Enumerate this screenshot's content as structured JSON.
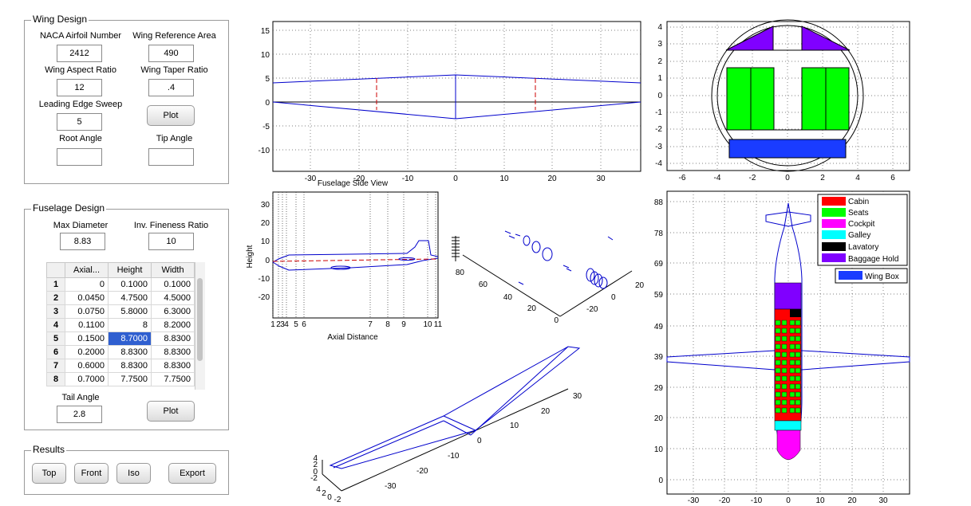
{
  "wing": {
    "title": "Wing Design",
    "naca_label": "NACA Airfoil Number",
    "naca_value": "2412",
    "area_label": "Wing Reference Area",
    "area_value": "490",
    "aspect_label": "Wing Aspect Ratio",
    "aspect_value": "12",
    "taper_label": "Wing Taper Ratio",
    "taper_value": ".4",
    "sweep_label": "Leading Edge Sweep",
    "sweep_value": "5",
    "plot_label": "Plot",
    "root_label": "Root Angle",
    "root_value": "",
    "tip_label": "Tip Angle",
    "tip_value": ""
  },
  "fuselage": {
    "title": "Fuselage Design",
    "diam_label": "Max Diameter",
    "diam_value": "8.83",
    "fineness_label": "Inv. Fineness Ratio",
    "fineness_value": "10",
    "table": {
      "headers": [
        "Axial...",
        "Height",
        "Width"
      ],
      "rows": [
        [
          "1",
          "0",
          "0.1000",
          "0.1000"
        ],
        [
          "2",
          "0.0450",
          "4.7500",
          "4.5000"
        ],
        [
          "3",
          "0.0750",
          "5.8000",
          "6.3000"
        ],
        [
          "4",
          "0.1100",
          "8",
          "8.2000"
        ],
        [
          "5",
          "0.1500",
          "8.7000",
          "8.8300"
        ],
        [
          "6",
          "0.2000",
          "8.8300",
          "8.8300"
        ],
        [
          "7",
          "0.6000",
          "8.8300",
          "8.8300"
        ],
        [
          "8",
          "0.7000",
          "7.7500",
          "7.7500"
        ]
      ],
      "selected_row": 5,
      "selected_col": 2
    },
    "tail_label": "Tail Angle",
    "tail_value": "2.8",
    "plot_label": "Plot"
  },
  "results": {
    "title": "Results",
    "top_label": "Top",
    "front_label": "Front",
    "iso_label": "Iso",
    "export_label": "Export"
  },
  "front_view": {
    "x_ticks": [
      "-30",
      "-20",
      "-10",
      "0",
      "10",
      "20",
      "30"
    ],
    "y_ticks": [
      "15",
      "10",
      "5",
      "0",
      "-5",
      "-10"
    ]
  },
  "side_view": {
    "title": "Fuselage Side View",
    "xlabel": "Axial Distance",
    "ylabel": "Height",
    "y_ticks": [
      "30",
      "20",
      "10",
      "0",
      "-10",
      "-20"
    ],
    "station_ticks": [
      "1",
      "2",
      "3",
      "4",
      "5",
      "6",
      "7",
      "8",
      "9",
      "10",
      "11"
    ]
  },
  "iso_small": {
    "left_ticks": [
      "80",
      "60",
      "40",
      "20",
      "0"
    ],
    "right_ticks": [
      "20",
      "0",
      "-20"
    ]
  },
  "cross_section": {
    "x_ticks": [
      "-6",
      "-4",
      "-2",
      "0",
      "2",
      "4",
      "6"
    ],
    "y_ticks": [
      "4",
      "3",
      "2",
      "1",
      "0",
      "-1",
      "-2",
      "-3",
      "-4"
    ]
  },
  "top_view": {
    "x_ticks": [
      "-30",
      "-20",
      "-10",
      "0",
      "10",
      "20",
      "30"
    ],
    "y_ticks": [
      "88",
      "78",
      "69",
      "59",
      "49",
      "39",
      "29",
      "20",
      "10",
      "0"
    ],
    "legend": [
      {
        "name": "Cabin",
        "color": "#ff0000"
      },
      {
        "name": "Seats",
        "color": "#00ff00"
      },
      {
        "name": "Cockpit",
        "color": "#ff00ff"
      },
      {
        "name": "Galley",
        "color": "#00ffff"
      },
      {
        "name": "Lavatory",
        "color": "#000000"
      },
      {
        "name": "Baggage Hold",
        "color": "#8000ff"
      }
    ],
    "legend2": {
      "name": "Wing Box",
      "color": "#0000ff"
    }
  },
  "iso_wing": {
    "a_ticks": [
      "30",
      "20",
      "10",
      "0",
      "-10",
      "-20",
      "-30"
    ],
    "z_ticks": [
      "4",
      "2",
      "0",
      "-2"
    ],
    "b_ticks": [
      "4",
      "2",
      "0",
      "-2"
    ]
  },
  "colors": {
    "line": "#0000cc",
    "dashed": "#cc0000",
    "panel_border": "#9a9a9a"
  }
}
